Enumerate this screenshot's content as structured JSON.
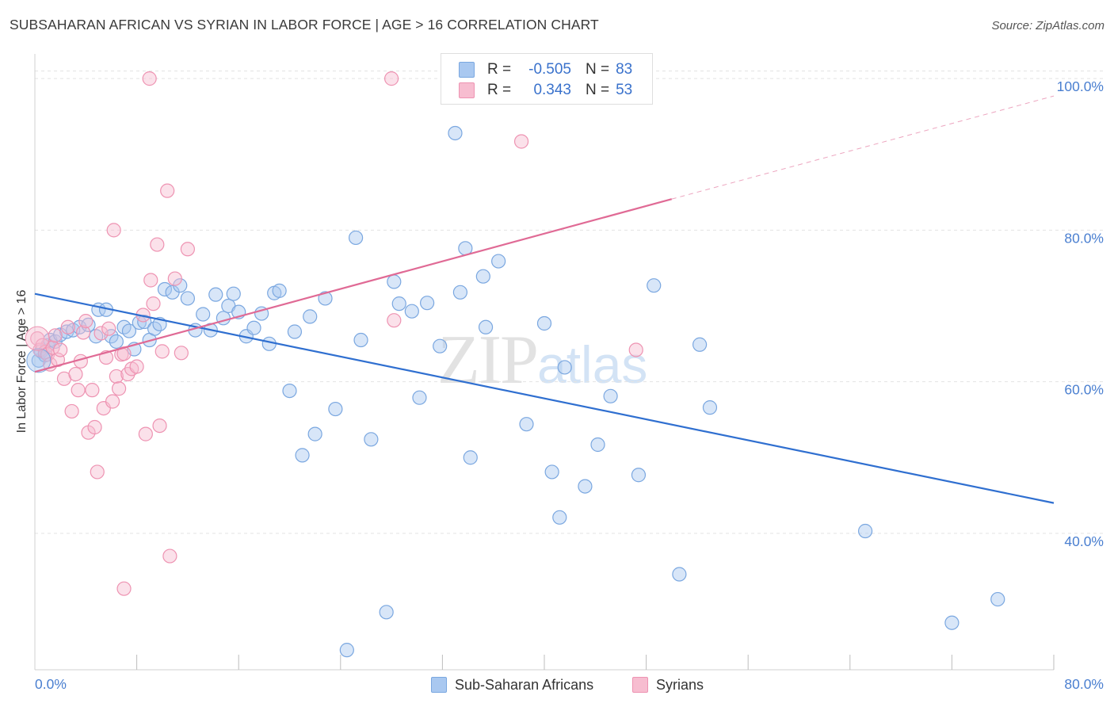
{
  "header": {
    "title": "SUBSAHARAN AFRICAN VS SYRIAN IN LABOR FORCE | AGE > 16 CORRELATION CHART",
    "source": "Source: ZipAtlas.com"
  },
  "watermark": {
    "zip": "ZIP",
    "atlas": "atlas"
  },
  "legend": {
    "rows": [
      {
        "r_label": "R =",
        "r_value": "-0.505",
        "n_label": "N =",
        "n_value": "83",
        "color": "#a9c8f0",
        "border": "#7aa7e0"
      },
      {
        "r_label": "R =",
        "r_value": "0.343",
        "n_label": "N =",
        "n_value": "53",
        "color": "#f7bdd0",
        "border": "#ee93b2"
      }
    ]
  },
  "bottom_legend": {
    "items": [
      {
        "label": "Sub-Saharan Africans",
        "color": "#a9c8f0",
        "border": "#7aa7e0"
      },
      {
        "label": "Syrians",
        "color": "#f7bdd0",
        "border": "#ee93b2"
      }
    ]
  },
  "chart_data": {
    "type": "scatter",
    "title": "SUBSAHARAN AFRICAN VS SYRIAN IN LABOR FORCE | AGE > 16 CORRELATION CHART",
    "xlabel": "",
    "ylabel": "In Labor Force | Age > 16",
    "xlim": [
      0,
      80
    ],
    "ylim": [
      22,
      102
    ],
    "x_tick_labels": [
      "0.0%",
      "80.0%"
    ],
    "y_ticks": [
      40,
      60,
      80,
      100
    ],
    "y_tick_labels": [
      "40.0%",
      "60.0%",
      "80.0%",
      "100.0%"
    ],
    "grid": true,
    "legend_position": "top-center",
    "series": [
      {
        "name": "Sub-Saharan Africans",
        "color": "#7aa7e0",
        "fill": "rgba(169,200,240,0.45)",
        "trend": {
          "x": [
            0,
            80
          ],
          "y": [
            71.6,
            44.0
          ],
          "color": "#2f6fd0"
        },
        "points": [
          [
            0.3,
            62.8
          ],
          [
            0.5,
            64.0
          ],
          [
            0.8,
            63.5
          ],
          [
            1.0,
            64.8
          ],
          [
            1.2,
            65.5
          ],
          [
            1.6,
            65.3
          ],
          [
            2.0,
            66.2
          ],
          [
            2.5,
            66.6
          ],
          [
            3.0,
            66.8
          ],
          [
            3.5,
            67.2
          ],
          [
            4.2,
            67.5
          ],
          [
            4.8,
            66.0
          ],
          [
            5.0,
            69.5
          ],
          [
            5.6,
            69.5
          ],
          [
            6.0,
            66.0
          ],
          [
            6.4,
            65.3
          ],
          [
            7.0,
            67.2
          ],
          [
            7.4,
            66.7
          ],
          [
            7.8,
            64.3
          ],
          [
            8.2,
            67.8
          ],
          [
            8.6,
            67.9
          ],
          [
            9.0,
            65.5
          ],
          [
            9.4,
            67.0
          ],
          [
            9.8,
            67.6
          ],
          [
            10.2,
            72.2
          ],
          [
            10.8,
            71.8
          ],
          [
            11.4,
            72.7
          ],
          [
            12.0,
            71.0
          ],
          [
            12.6,
            66.8
          ],
          [
            13.2,
            68.9
          ],
          [
            13.8,
            66.8
          ],
          [
            14.2,
            71.5
          ],
          [
            14.8,
            68.4
          ],
          [
            15.2,
            70.0
          ],
          [
            15.6,
            71.6
          ],
          [
            16.0,
            69.2
          ],
          [
            16.6,
            66.0
          ],
          [
            17.2,
            67.1
          ],
          [
            17.8,
            69.0
          ],
          [
            18.4,
            65.0
          ],
          [
            18.8,
            71.7
          ],
          [
            19.2,
            72.0
          ],
          [
            20.0,
            58.8
          ],
          [
            20.4,
            66.6
          ],
          [
            21.0,
            50.3
          ],
          [
            21.6,
            68.6
          ],
          [
            22.0,
            53.1
          ],
          [
            22.8,
            71.0
          ],
          [
            23.6,
            56.4
          ],
          [
            24.5,
            24.6
          ],
          [
            25.6,
            65.5
          ],
          [
            25.2,
            79.0
          ],
          [
            26.4,
            52.4
          ],
          [
            27.6,
            29.6
          ],
          [
            28.2,
            73.2
          ],
          [
            28.6,
            70.3
          ],
          [
            29.6,
            69.3
          ],
          [
            30.2,
            57.9
          ],
          [
            30.8,
            70.4
          ],
          [
            31.8,
            64.7
          ],
          [
            33.0,
            92.8
          ],
          [
            33.4,
            71.8
          ],
          [
            33.8,
            77.6
          ],
          [
            34.2,
            50.0
          ],
          [
            35.2,
            73.9
          ],
          [
            35.4,
            67.2
          ],
          [
            36.4,
            75.9
          ],
          [
            38.6,
            54.4
          ],
          [
            40.0,
            67.7
          ],
          [
            40.6,
            48.1
          ],
          [
            41.2,
            42.1
          ],
          [
            41.6,
            61.9
          ],
          [
            43.2,
            46.2
          ],
          [
            44.2,
            51.7
          ],
          [
            45.2,
            58.1
          ],
          [
            47.4,
            47.7
          ],
          [
            48.6,
            72.7
          ],
          [
            50.6,
            34.6
          ],
          [
            52.2,
            64.9
          ],
          [
            53.0,
            56.6
          ],
          [
            65.2,
            40.3
          ],
          [
            72.0,
            28.2
          ],
          [
            75.6,
            31.3
          ]
        ]
      },
      {
        "name": "Syrians",
        "color": "#ee93b2",
        "fill": "rgba(247,189,208,0.45)",
        "trend": {
          "x": [
            0,
            50
          ],
          "y": [
            61.3,
            84.1
          ],
          "color": "#e06a95",
          "dashed_to": [
            80,
            97.7
          ]
        },
        "points": [
          [
            0.2,
            65.7
          ],
          [
            0.4,
            64.2
          ],
          [
            0.6,
            64.8
          ],
          [
            0.8,
            63.9
          ],
          [
            1.0,
            63.6
          ],
          [
            1.2,
            62.3
          ],
          [
            1.4,
            64.5
          ],
          [
            1.6,
            66.1
          ],
          [
            1.8,
            62.9
          ],
          [
            2.0,
            64.2
          ],
          [
            2.3,
            60.4
          ],
          [
            2.6,
            67.2
          ],
          [
            2.9,
            56.1
          ],
          [
            3.2,
            61.0
          ],
          [
            3.4,
            58.9
          ],
          [
            3.6,
            62.7
          ],
          [
            3.8,
            66.5
          ],
          [
            4.0,
            68.0
          ],
          [
            4.2,
            53.3
          ],
          [
            4.5,
            58.9
          ],
          [
            4.7,
            54.0
          ],
          [
            4.9,
            48.1
          ],
          [
            5.2,
            66.4
          ],
          [
            5.4,
            56.5
          ],
          [
            5.6,
            63.2
          ],
          [
            5.8,
            67.0
          ],
          [
            6.1,
            57.4
          ],
          [
            6.2,
            80.0
          ],
          [
            6.4,
            60.7
          ],
          [
            6.6,
            59.1
          ],
          [
            6.8,
            63.6
          ],
          [
            7.0,
            63.7
          ],
          [
            7.0,
            32.7
          ],
          [
            7.3,
            61.0
          ],
          [
            7.6,
            61.7
          ],
          [
            8.0,
            62.0
          ],
          [
            8.5,
            68.8
          ],
          [
            8.7,
            53.1
          ],
          [
            9.0,
            100.0
          ],
          [
            9.1,
            73.4
          ],
          [
            9.3,
            70.3
          ],
          [
            9.6,
            78.1
          ],
          [
            9.8,
            54.2
          ],
          [
            10.0,
            64.0
          ],
          [
            10.4,
            85.2
          ],
          [
            10.6,
            37.0
          ],
          [
            11.0,
            73.6
          ],
          [
            11.5,
            63.8
          ],
          [
            12.0,
            77.5
          ],
          [
            28.0,
            100.0
          ],
          [
            28.2,
            68.1
          ],
          [
            38.2,
            91.7
          ],
          [
            47.2,
            64.2
          ]
        ]
      }
    ]
  }
}
